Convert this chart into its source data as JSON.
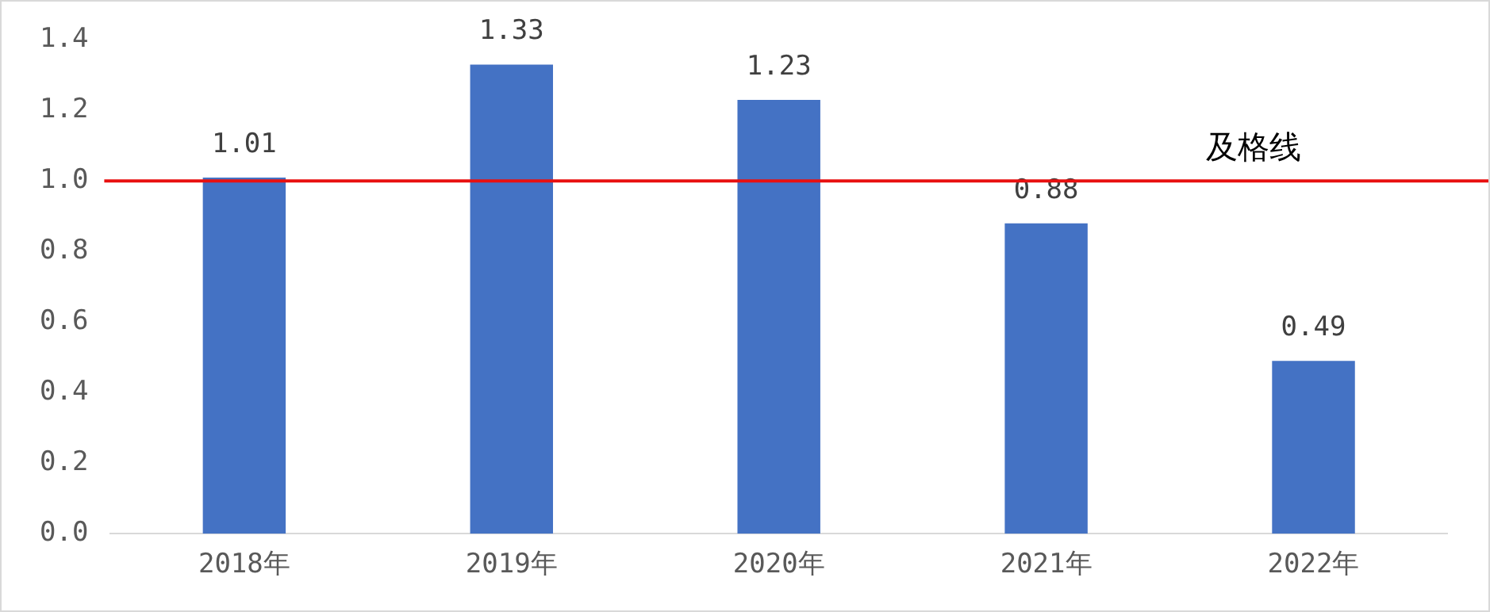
{
  "chart_data": {
    "type": "bar",
    "categories": [
      "2018年",
      "2019年",
      "2020年",
      "2021年",
      "2022年"
    ],
    "values": [
      1.01,
      1.33,
      1.23,
      0.88,
      0.49
    ],
    "color": "#4472c4",
    "ylim": [
      0,
      1.4
    ],
    "yticks": [
      {
        "value": 0,
        "label": "0.0"
      },
      {
        "value": 0.2,
        "label": "0.2"
      },
      {
        "value": 0.4,
        "label": "0.4"
      },
      {
        "value": 0.6,
        "label": "0.6"
      },
      {
        "value": 0.8,
        "label": "0.8"
      },
      {
        "value": 1,
        "label": "1.0"
      },
      {
        "value": 1.2,
        "label": "1.2"
      },
      {
        "value": 1.4,
        "label": "1.4"
      }
    ],
    "ref_lines": [
      {
        "axis": "y",
        "value": 1,
        "label": "及格线",
        "color": "#e81010"
      }
    ],
    "data_labels": true,
    "grid": false,
    "legend": false
  }
}
